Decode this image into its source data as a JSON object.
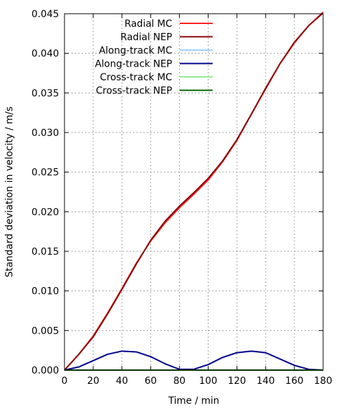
{
  "chart_data": {
    "type": "line",
    "xlabel": "Time / min",
    "ylabel": "Standard deviation in velocity / m/s",
    "xlim": [
      0,
      180
    ],
    "ylim": [
      0,
      0.045
    ],
    "xticks": [
      0,
      20,
      40,
      60,
      80,
      100,
      120,
      140,
      160,
      180
    ],
    "yticks": [
      0.0,
      0.005,
      0.01,
      0.015,
      0.02,
      0.025,
      0.03,
      0.035,
      0.04,
      0.045
    ],
    "xtick_labels": [
      "0",
      "20",
      "40",
      "60",
      "80",
      "100",
      "120",
      "140",
      "160",
      "180"
    ],
    "ytick_labels": [
      "0.000",
      "0.005",
      "0.010",
      "0.015",
      "0.020",
      "0.025",
      "0.030",
      "0.035",
      "0.040",
      "0.045"
    ],
    "grid": true,
    "legend_position": "top-left",
    "series": [
      {
        "name": "Radial MC",
        "color": "#ff2020",
        "x": [
          0,
          10,
          20,
          30,
          40,
          50,
          60,
          70,
          80,
          90,
          100,
          110,
          120,
          130,
          140,
          150,
          160,
          170,
          180
        ],
        "y": [
          0.0,
          0.002,
          0.0043,
          0.0072,
          0.0103,
          0.0135,
          0.0163,
          0.0186,
          0.0205,
          0.0222,
          0.024,
          0.0263,
          0.029,
          0.0323,
          0.0355,
          0.0387,
          0.0413,
          0.0435,
          0.0452
        ]
      },
      {
        "name": "Radial NEP",
        "color": "#8b0000",
        "x": [
          0,
          10,
          20,
          30,
          40,
          50,
          60,
          70,
          80,
          90,
          100,
          110,
          120,
          130,
          140,
          150,
          160,
          170,
          180
        ],
        "y": [
          0.0,
          0.002,
          0.0042,
          0.0071,
          0.0102,
          0.0134,
          0.0164,
          0.0188,
          0.0207,
          0.0224,
          0.0242,
          0.0264,
          0.0291,
          0.0323,
          0.0356,
          0.0387,
          0.0414,
          0.0435,
          0.0451
        ]
      },
      {
        "name": "Along-track MC",
        "color": "#9fd0ff",
        "x": [
          0,
          10,
          20,
          30,
          40,
          50,
          60,
          70,
          80,
          90,
          100,
          110,
          120,
          130,
          140,
          150,
          160,
          170,
          180
        ],
        "y": [
          0.0,
          0.0004,
          0.0012,
          0.002,
          0.0024,
          0.0023,
          0.0017,
          0.0008,
          0.0001,
          0.0001,
          0.0007,
          0.0016,
          0.0022,
          0.0024,
          0.0022,
          0.0014,
          0.0006,
          0.0001,
          0.0
        ]
      },
      {
        "name": "Along-track NEP",
        "color": "#00008b",
        "x": [
          0,
          10,
          20,
          30,
          40,
          50,
          60,
          70,
          80,
          90,
          100,
          110,
          120,
          130,
          140,
          150,
          160,
          170,
          180
        ],
        "y": [
          0.0,
          0.0004,
          0.0012,
          0.002,
          0.0024,
          0.0023,
          0.0017,
          0.0008,
          0.0001,
          0.0001,
          0.0007,
          0.0016,
          0.0022,
          0.0024,
          0.0022,
          0.0014,
          0.0006,
          0.0001,
          0.0
        ]
      },
      {
        "name": "Cross-track MC",
        "color": "#90ee90",
        "x": [
          0,
          180
        ],
        "y": [
          0.0,
          0.0
        ]
      },
      {
        "name": "Cross-track NEP",
        "color": "#006400",
        "x": [
          0,
          180
        ],
        "y": [
          0.0,
          0.0
        ]
      }
    ]
  }
}
